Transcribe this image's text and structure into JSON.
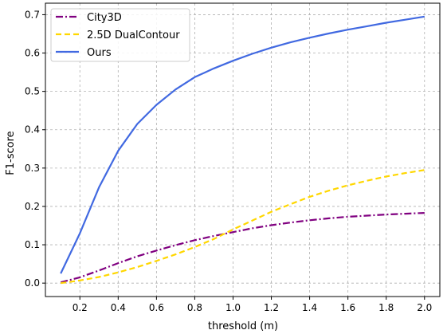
{
  "chart_data": {
    "type": "line",
    "xlabel": "threshold (m)",
    "ylabel": "F1-score",
    "xlim": [
      0.02,
      2.08
    ],
    "ylim": [
      -0.035,
      0.73
    ],
    "xticks": [
      0.2,
      0.4,
      0.6,
      0.8,
      1.0,
      1.2,
      1.4,
      1.6,
      1.8,
      2.0
    ],
    "xtick_labels": [
      "0.2",
      "0.4",
      "0.6",
      "0.8",
      "1.0",
      "1.2",
      "1.4",
      "1.6",
      "1.8",
      "2.0"
    ],
    "yticks": [
      0.0,
      0.1,
      0.2,
      0.3,
      0.4,
      0.5,
      0.6,
      0.7
    ],
    "ytick_labels": [
      "0.0",
      "0.1",
      "0.2",
      "0.3",
      "0.4",
      "0.5",
      "0.6",
      "0.7"
    ],
    "grid": true,
    "legend_position": "top-left",
    "x": [
      0.1,
      0.2,
      0.3,
      0.4,
      0.5,
      0.6,
      0.7,
      0.8,
      0.9,
      1.0,
      1.1,
      1.2,
      1.3,
      1.4,
      1.5,
      1.6,
      1.7,
      1.8,
      1.9,
      2.0
    ],
    "series": [
      {
        "name": "City3D",
        "color": "#800080",
        "style": "dashdot",
        "values": [
          0.002,
          0.015,
          0.033,
          0.052,
          0.07,
          0.085,
          0.099,
          0.112,
          0.123,
          0.133,
          0.143,
          0.151,
          0.158,
          0.164,
          0.169,
          0.173,
          0.176,
          0.179,
          0.181,
          0.183
        ]
      },
      {
        "name": "2.5D DualContour",
        "color": "#FFD700",
        "style": "dashed",
        "values": [
          0.0,
          0.007,
          0.016,
          0.028,
          0.042,
          0.058,
          0.075,
          0.094,
          0.115,
          0.14,
          0.163,
          0.186,
          0.206,
          0.225,
          0.241,
          0.255,
          0.267,
          0.278,
          0.287,
          0.295
        ]
      },
      {
        "name": "Ours",
        "color": "#4169E1",
        "style": "solid",
        "values": [
          0.025,
          0.13,
          0.25,
          0.345,
          0.415,
          0.465,
          0.505,
          0.537,
          0.56,
          0.58,
          0.598,
          0.614,
          0.628,
          0.64,
          0.651,
          0.661,
          0.67,
          0.679,
          0.687,
          0.695
        ]
      }
    ]
  }
}
